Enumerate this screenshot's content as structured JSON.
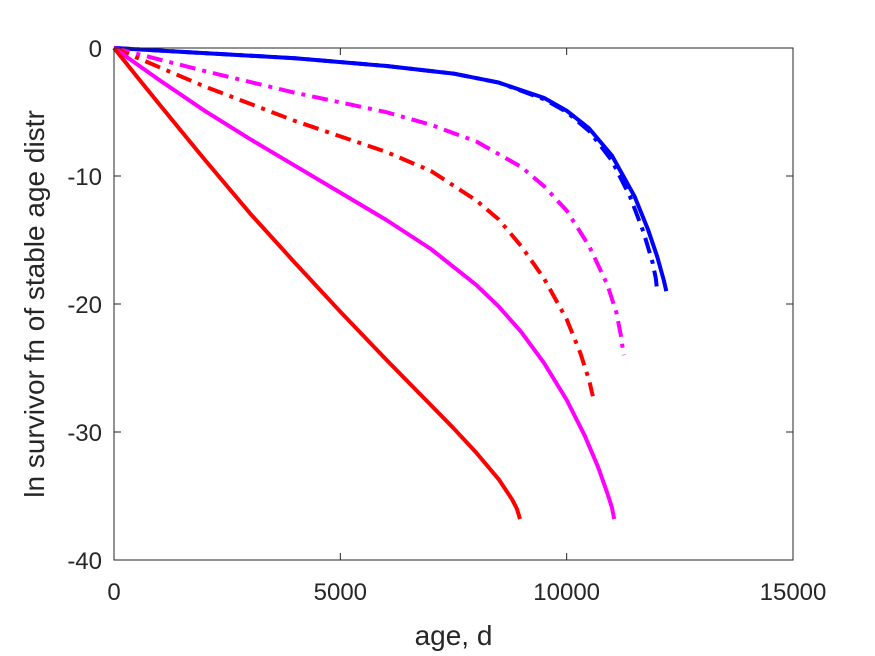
{
  "chart_data": {
    "type": "line",
    "title": "",
    "xlabel": "age, d",
    "ylabel": "ln survivor fn of stable age distr",
    "xlim": [
      0,
      15000
    ],
    "ylim": [
      -40,
      0
    ],
    "xticks": [
      0,
      5000,
      10000,
      15000
    ],
    "yticks": [
      0,
      -10,
      -20,
      -30,
      -40
    ],
    "xtick_labels": [
      "0",
      "5000",
      "10000",
      "15000"
    ],
    "ytick_labels": [
      "0",
      "-10",
      "-20",
      "-30",
      "-40"
    ],
    "grid": false,
    "legend": "none",
    "series": [
      {
        "color": "#0000ff",
        "dash": "solid",
        "x": [
          0,
          2000,
          4000,
          6000,
          7500,
          8500,
          9500,
          10000,
          10500,
          11000,
          11500,
          11800,
          12000,
          12150,
          12200
        ],
        "y": [
          0,
          -0.4,
          -0.8,
          -1.4,
          -2.0,
          -2.7,
          -3.9,
          -4.9,
          -6.3,
          -8.4,
          -11.6,
          -14.2,
          -16.3,
          -18.2,
          -19
        ]
      },
      {
        "color": "#0000ff",
        "dash": "dashdot",
        "x": [
          0,
          2000,
          4000,
          6000,
          7500,
          8500,
          9500,
          10000,
          10500,
          11000,
          11400,
          11700,
          11900,
          11970,
          12000
        ],
        "y": [
          0,
          -0.4,
          -0.8,
          -1.4,
          -2.0,
          -2.7,
          -4.0,
          -5.0,
          -6.5,
          -8.8,
          -11.6,
          -14.4,
          -16.8,
          -18,
          -19
        ]
      },
      {
        "color": "#ff00ff",
        "dash": "dashdot",
        "x": [
          0,
          1000,
          2000,
          4000,
          6000,
          7000,
          8000,
          9000,
          9500,
          10000,
          10500,
          10900,
          11100,
          11200,
          11250,
          11260
        ],
        "y": [
          0,
          -0.9,
          -1.8,
          -3.5,
          -5.0,
          -6.0,
          -7.3,
          -9.3,
          -10.8,
          -12.7,
          -15.5,
          -18.5,
          -20.7,
          -22.5,
          -23.8,
          -24
        ]
      },
      {
        "color": "#ff0000",
        "dash": "dashdot",
        "x": [
          0,
          1000,
          2000,
          4000,
          6000,
          7000,
          8000,
          8500,
          9000,
          9500,
          10000,
          10300,
          10500,
          10550,
          10580
        ],
        "y": [
          0,
          -1.5,
          -3.0,
          -5.7,
          -8.1,
          -9.6,
          -11.9,
          -13.4,
          -15.5,
          -18.0,
          -21.2,
          -23.8,
          -26.0,
          -26.8,
          -27.2
        ]
      },
      {
        "color": "#ff00ff",
        "dash": "solid",
        "x": [
          0,
          1000,
          2000,
          3000,
          4000,
          5000,
          6000,
          7000,
          8000,
          8500,
          9000,
          9500,
          10000,
          10400,
          10700,
          10900,
          11000,
          11050
        ],
        "y": [
          0,
          -2.5,
          -4.9,
          -7.1,
          -9.2,
          -11.3,
          -13.4,
          -15.7,
          -18.5,
          -20.2,
          -22.2,
          -24.6,
          -27.5,
          -30.3,
          -32.8,
          -34.8,
          -35.9,
          -36.8
        ]
      },
      {
        "color": "#ff0000",
        "dash": "solid",
        "x": [
          0,
          500,
          1000,
          2000,
          3000,
          4000,
          5000,
          6000,
          7000,
          7500,
          8000,
          8500,
          8800,
          8900,
          8970
        ],
        "y": [
          0,
          -2.2,
          -4.4,
          -8.7,
          -12.9,
          -16.8,
          -20.6,
          -24.3,
          -27.9,
          -29.7,
          -31.6,
          -33.7,
          -35.3,
          -36.0,
          -36.8
        ]
      }
    ]
  }
}
